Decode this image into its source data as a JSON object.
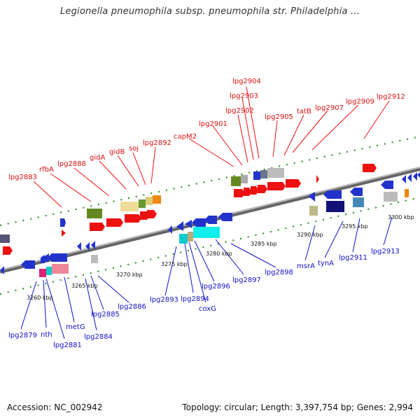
{
  "title": "Legionella pneumophila subsp. pneumophila str. Philadelphia ...",
  "footer": {
    "accession": "Accession: NC_002942",
    "summary": "Topology: circular; Length: 3,397,754 bp; Genes: 2,994"
  },
  "colors": {
    "forward_label": "#dd1111",
    "reverse_label": "#1111cc",
    "backbone": "#8a8a8a",
    "tick": "#228822"
  },
  "kbp_labels": [
    "3260 kbp",
    "3265 kbp",
    "3270 kbp",
    "3275 kbp",
    "3280 kbp",
    "3285 kbp",
    "3290 kbp",
    "3295 kbp",
    "3300 kbp"
  ],
  "forward_genes": [
    "lpg2883",
    "rfbA",
    "lpg2888",
    "gidA",
    "gidB",
    "soj",
    "lpg2892",
    "capM2",
    "lpg2901",
    "lpg2902",
    "lpg2903",
    "lpg2904",
    "lpg2905",
    "tatB",
    "lpg2907",
    "lpg2909",
    "lpg2912"
  ],
  "reverse_genes": [
    "lpg2879",
    "nth",
    "lpg2881",
    "metG",
    "lpg2884",
    "lpg2885",
    "lpg2886",
    "lpg2893",
    "lpg2894",
    "coxG",
    "lpg2896",
    "lpg2897",
    "lpg2898",
    "msrA",
    "tynA",
    "lpg2911",
    "lpg2913"
  ]
}
